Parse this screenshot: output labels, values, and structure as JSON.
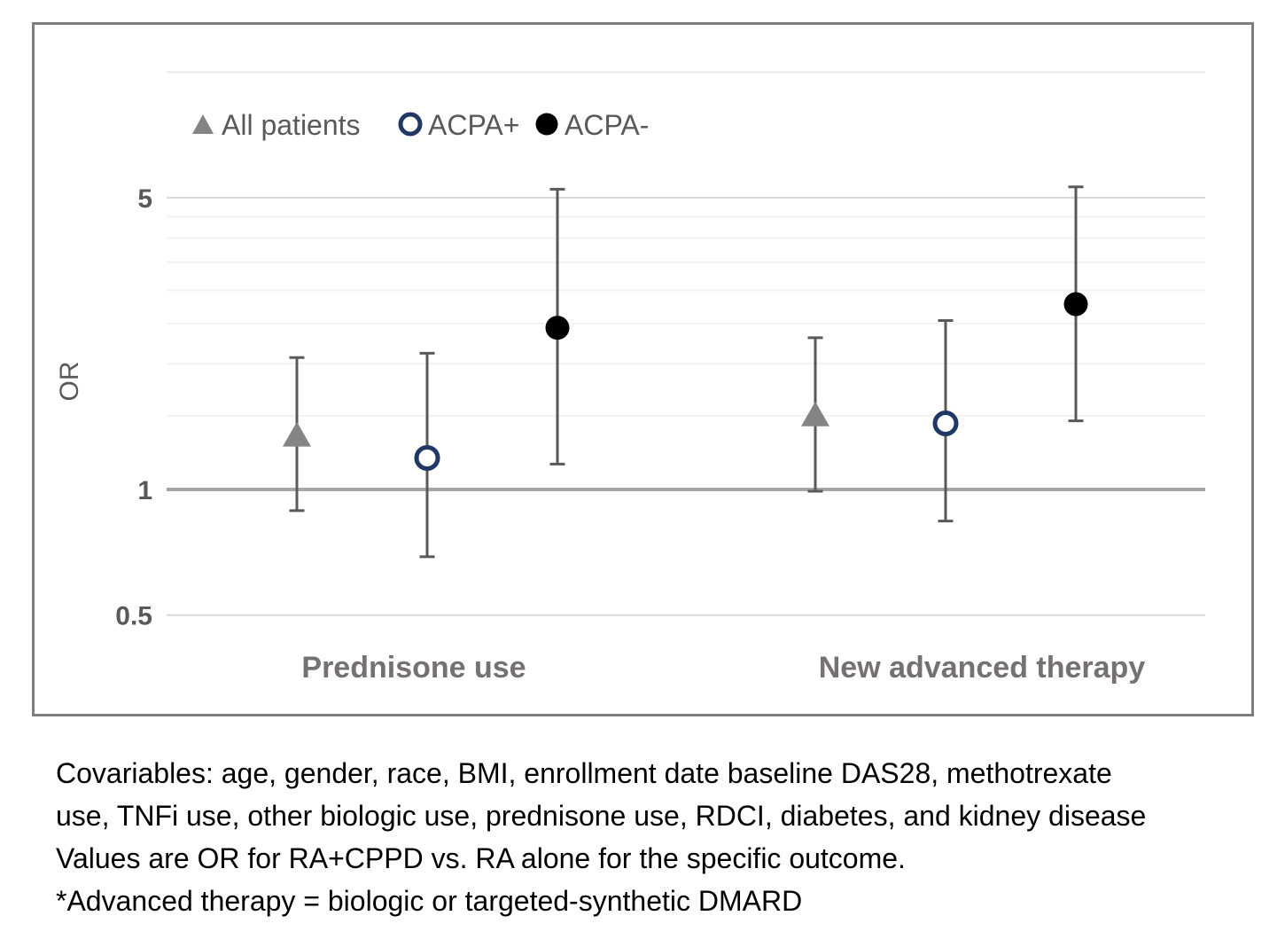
{
  "chart_data": {
    "type": "scatter",
    "subtype": "forest-plot",
    "scale": "log",
    "title": "",
    "xlabel": "",
    "ylabel": "OR",
    "ylim": [
      0.43,
      10
    ],
    "grid": true,
    "legend_position": "top",
    "categories": [
      "Prednisone use",
      "New advanced therapy"
    ],
    "yticks": [
      {
        "value": 5,
        "label": "5"
      },
      {
        "value": 1,
        "label": "1"
      },
      {
        "value": 0.5,
        "label": "0.5"
      }
    ],
    "gridlines": [
      {
        "value": 10,
        "style": "edge"
      },
      {
        "value": 5,
        "style": "major"
      },
      {
        "value": 4.5,
        "style": "minor"
      },
      {
        "value": 4,
        "style": "minor"
      },
      {
        "value": 3.5,
        "style": "minor"
      },
      {
        "value": 3,
        "style": "minor"
      },
      {
        "value": 2.5,
        "style": "minor"
      },
      {
        "value": 2,
        "style": "minor"
      },
      {
        "value": 1.5,
        "style": "minor"
      },
      {
        "value": 1,
        "style": "ref"
      },
      {
        "value": 0.5,
        "style": "major"
      }
    ],
    "reference_line": 1,
    "series": [
      {
        "name": "All patients",
        "marker": "triangle",
        "color": "#848484",
        "points": [
          {
            "category": "Prednisone use",
            "or": 1.35,
            "ci_low": 0.89,
            "ci_high": 2.07
          },
          {
            "category": "New advanced therapy",
            "or": 1.51,
            "ci_low": 0.99,
            "ci_high": 2.31
          }
        ]
      },
      {
        "name": "ACPA+",
        "marker": "open-circle",
        "color": "#1F3864",
        "points": [
          {
            "category": "Prednisone use",
            "or": 1.19,
            "ci_low": 0.69,
            "ci_high": 2.12
          },
          {
            "category": "New advanced therapy",
            "or": 1.44,
            "ci_low": 0.84,
            "ci_high": 2.54
          }
        ]
      },
      {
        "name": "ACPA-",
        "marker": "filled-circle",
        "color": "#000000",
        "points": [
          {
            "category": "Prednisone use",
            "or": 2.44,
            "ci_low": 1.15,
            "ci_high": 5.24
          },
          {
            "category": "New advanced therapy",
            "or": 2.78,
            "ci_low": 1.46,
            "ci_high": 5.31
          }
        ]
      }
    ],
    "colors": {
      "frame_border": "#7F7F7F",
      "error_bar": "#595959",
      "gridline_major": "#D9D9D9",
      "gridline_minor": "#F2F2F2",
      "gridline_edge": "#E9E9E9",
      "reference_line_color": "#A6A6A6",
      "tick_label": "#595959",
      "category_label": "#767171",
      "legend_text": "#595959"
    }
  },
  "caption": {
    "lines": [
      "Covariables: age, gender, race, BMI, enrollment date baseline DAS28, methotrexate",
      "use, TNFi use, other biologic use, prednisone use, RDCI, diabetes, and kidney disease",
      "Values are OR for RA+CPPD vs. RA alone for the specific outcome.",
      "*Advanced therapy = biologic or targeted-synthetic DMARD"
    ]
  }
}
